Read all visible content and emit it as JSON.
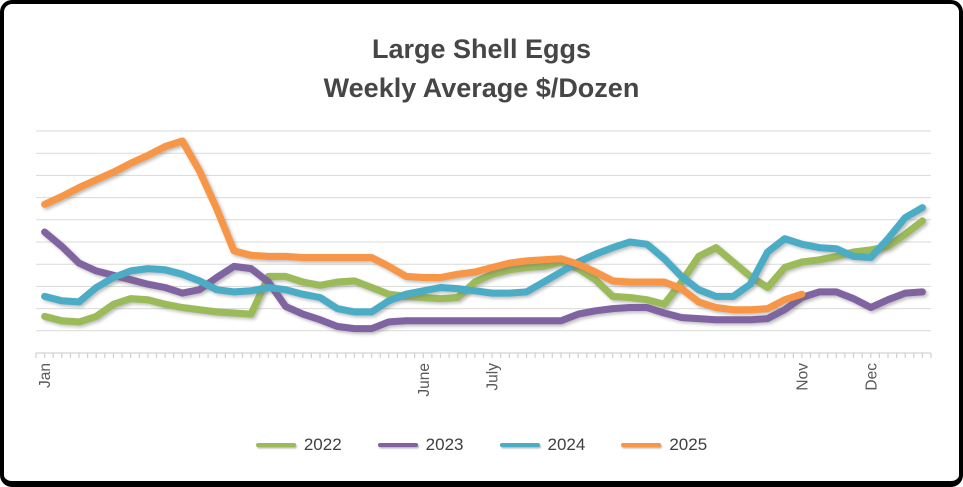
{
  "title": {
    "line1": "Large Shell Eggs",
    "line2": "Weekly Average $/Dozen"
  },
  "colors": {
    "title_text": "#464646",
    "axis_label_text": "#595959",
    "legend_text": "#3f3f3f",
    "gridline": "#dadada",
    "frame_border": "#000000",
    "background": "#ffffff"
  },
  "chart_data": {
    "type": "line",
    "title": "Large Shell Eggs Weekly Average $/Dozen",
    "xlabel": "",
    "ylabel": "",
    "x_unit": "week of year (weekly prices, Jan-Dec)",
    "y_axis": {
      "tick_labels_visible": false,
      "assumed_unit": "USD per dozen",
      "ylim": [
        0,
        10
      ],
      "gridline_interval": 1,
      "gridline_count": 11,
      "grid_on": true
    },
    "x_axis": {
      "weeks": 52,
      "minor_tick_intervals": 104,
      "month_labels": [
        {
          "label": "Jan",
          "week": 1
        },
        {
          "label": "June",
          "week": 23
        },
        {
          "label": "July",
          "week": 27
        },
        {
          "label": "Nov",
          "week": 45
        },
        {
          "label": "Dec",
          "week": 49
        }
      ],
      "label_rotation_deg": -90
    },
    "legend": {
      "position": "bottom-center"
    },
    "series": [
      {
        "name": "2022",
        "color": "#9BBB59",
        "values": [
          1.65,
          1.45,
          1.4,
          1.65,
          2.2,
          2.45,
          2.4,
          2.2,
          2.05,
          1.95,
          1.85,
          1.8,
          1.75,
          3.45,
          3.45,
          3.2,
          3.05,
          3.2,
          3.25,
          2.95,
          2.65,
          2.55,
          2.5,
          2.45,
          2.5,
          3.2,
          3.55,
          3.75,
          3.85,
          3.9,
          4.1,
          3.8,
          3.3,
          2.55,
          2.5,
          2.4,
          2.2,
          3.2,
          4.35,
          4.75,
          4.1,
          3.45,
          2.95,
          3.85,
          4.1,
          4.2,
          4.35,
          4.55,
          4.65,
          4.8,
          5.35,
          5.95
        ]
      },
      {
        "name": "2023",
        "color": "#8064A2",
        "values": [
          5.45,
          4.8,
          4.05,
          3.7,
          3.5,
          3.3,
          3.1,
          2.95,
          2.7,
          2.85,
          3.4,
          3.9,
          3.8,
          3.2,
          2.1,
          1.75,
          1.5,
          1.2,
          1.1,
          1.1,
          1.4,
          1.45,
          1.45,
          1.45,
          1.45,
          1.45,
          1.45,
          1.45,
          1.45,
          1.45,
          1.45,
          1.75,
          1.9,
          2.0,
          2.05,
          2.05,
          1.8,
          1.6,
          1.55,
          1.5,
          1.5,
          1.5,
          1.55,
          1.95,
          2.5,
          2.75,
          2.75,
          2.45,
          2.05,
          2.4,
          2.7,
          2.75
        ]
      },
      {
        "name": "2024",
        "color": "#4BACC6",
        "values": [
          2.55,
          2.35,
          2.3,
          2.95,
          3.4,
          3.7,
          3.8,
          3.75,
          3.55,
          3.25,
          2.85,
          2.75,
          2.8,
          2.95,
          2.85,
          2.65,
          2.5,
          2.0,
          1.85,
          1.85,
          2.35,
          2.65,
          2.8,
          2.95,
          2.9,
          2.8,
          2.7,
          2.7,
          2.75,
          3.2,
          3.65,
          4.1,
          4.45,
          4.75,
          5.0,
          4.9,
          4.25,
          3.45,
          2.85,
          2.55,
          2.55,
          3.1,
          4.55,
          5.15,
          4.9,
          4.75,
          4.7,
          4.35,
          4.3,
          5.15,
          6.1,
          6.55
        ]
      },
      {
        "name": "2025",
        "color": "#F79646",
        "values": [
          6.7,
          7.05,
          7.45,
          7.8,
          8.15,
          8.55,
          8.9,
          9.3,
          9.55,
          8.2,
          6.5,
          4.6,
          4.4,
          4.35,
          4.35,
          4.3,
          4.3,
          4.3,
          4.3,
          4.3,
          3.9,
          3.45,
          3.4,
          3.4,
          3.55,
          3.65,
          3.85,
          4.05,
          4.15,
          4.2,
          4.25,
          4.0,
          3.65,
          3.25,
          3.2,
          3.2,
          3.2,
          2.9,
          2.3,
          2.05,
          1.95,
          1.95,
          2.0,
          2.4,
          2.65
        ]
      }
    ]
  }
}
